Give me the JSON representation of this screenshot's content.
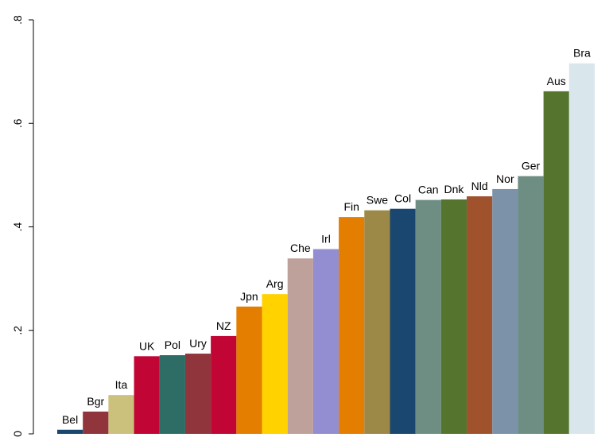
{
  "chart_data": {
    "type": "bar",
    "categories": [
      "Bel",
      "Bgr",
      "Ita",
      "UK",
      "Pol",
      "Ury",
      "NZ",
      "Jpn",
      "Arg",
      "Che",
      "Irl",
      "Fin",
      "Swe",
      "Col",
      "Can",
      "Dnk",
      "Nld",
      "Nor",
      "Ger",
      "Aus",
      "Bra"
    ],
    "values": [
      0.008,
      0.043,
      0.075,
      0.15,
      0.152,
      0.155,
      0.189,
      0.246,
      0.27,
      0.339,
      0.357,
      0.419,
      0.432,
      0.435,
      0.452,
      0.453,
      0.459,
      0.473,
      0.498,
      0.662,
      0.716
    ],
    "colors": [
      "#1a476f",
      "#90353b",
      "#cbc07c",
      "#c10534",
      "#2d6d66",
      "#90353b",
      "#c10534",
      "#e37e00",
      "#ffd200",
      "#bfa19c",
      "#938dd2",
      "#e37e00",
      "#9c8847",
      "#1a476f",
      "#6e8e84",
      "#55752f",
      "#a0522d",
      "#7b92a8",
      "#6e8e84",
      "#55752f",
      "#d9e6eb"
    ],
    "ylim": [
      0,
      0.8
    ],
    "yticks": [
      0,
      {
        "value": 0.2,
        "label": ".2"
      },
      {
        "value": 0.4,
        "label": ".4"
      },
      {
        "value": 0.6,
        "label": ".6"
      },
      {
        "value": 0.8,
        "label": ".8"
      }
    ]
  }
}
